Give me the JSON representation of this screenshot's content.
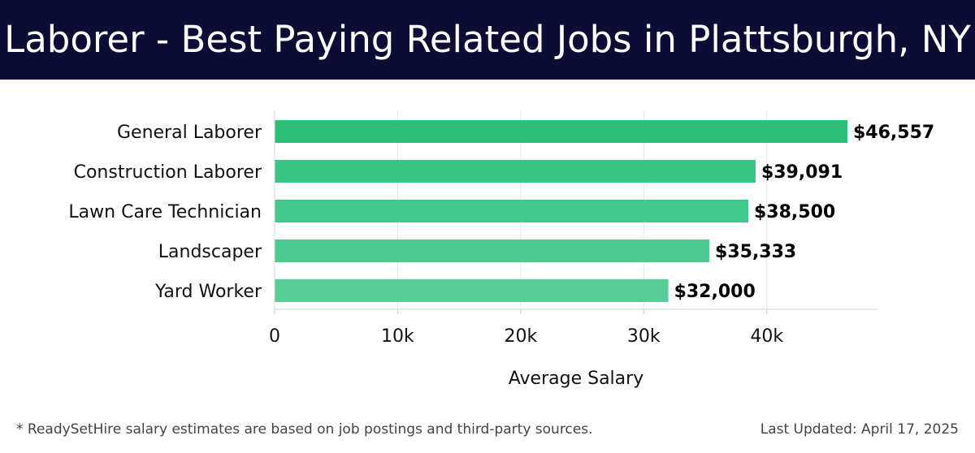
{
  "header": {
    "title": "Laborer - Best Paying Related Jobs in Plattsburgh, NY"
  },
  "footer": {
    "note": "* ReadySetHire salary estimates are based on job postings and third-party sources.",
    "updated": "Last Updated: April 17, 2025"
  },
  "colors": {
    "header_bg": "#0b0d35",
    "bar_colors": [
      "#2bbf78",
      "#3bc484",
      "#44c78a",
      "#4dca8f",
      "#58cd96"
    ]
  },
  "chart_data": {
    "type": "bar",
    "orientation": "horizontal",
    "categories": [
      "General Laborer",
      "Construction Laborer",
      "Lawn Care Technician",
      "Landscaper",
      "Yard Worker"
    ],
    "values": [
      46557,
      39091,
      38500,
      35333,
      32000
    ],
    "value_labels": [
      "$46,557",
      "$39,091",
      "$38,500",
      "$35,333",
      "$32,000"
    ],
    "xlabel": "Average Salary",
    "ylabel": "",
    "xlim": [
      0,
      49000
    ],
    "xticks": [
      0,
      10000,
      20000,
      30000,
      40000
    ],
    "xtick_labels": [
      "0",
      "10k",
      "20k",
      "30k",
      "40k"
    ],
    "grid": true
  }
}
